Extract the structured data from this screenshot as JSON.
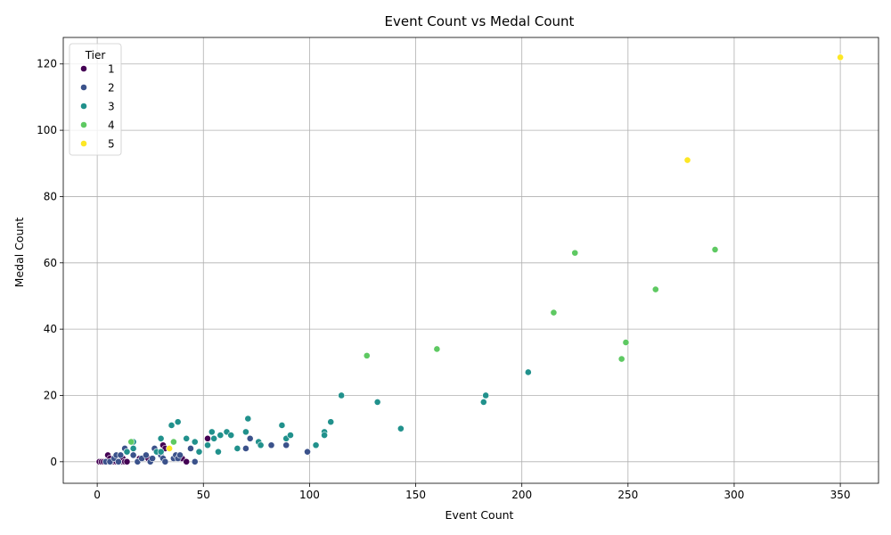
{
  "chart_data": {
    "type": "scatter",
    "title": "Event Count vs Medal Count",
    "xlabel": "Event Count",
    "ylabel": "Medal Count",
    "xlim": [
      -16,
      368
    ],
    "ylim": [
      -6.5,
      128
    ],
    "xticks": [
      0,
      50,
      100,
      150,
      200,
      250,
      300,
      350
    ],
    "yticks": [
      0,
      20,
      40,
      60,
      80,
      100,
      120
    ],
    "grid": true,
    "legend": {
      "title": "Tier",
      "placement": "top-left"
    },
    "colors": {
      "1": "#440154",
      "2": "#3b528b",
      "3": "#21918c",
      "4": "#5ec962",
      "5": "#fde725"
    },
    "series": [
      {
        "name": "1",
        "points": [
          [
            1,
            0
          ],
          [
            2,
            0
          ],
          [
            3,
            0
          ],
          [
            4,
            0
          ],
          [
            5,
            0
          ],
          [
            5,
            2
          ],
          [
            6,
            0
          ],
          [
            6,
            1
          ],
          [
            7,
            0
          ],
          [
            8,
            0
          ],
          [
            8,
            1
          ],
          [
            9,
            0
          ],
          [
            10,
            0
          ],
          [
            11,
            0
          ],
          [
            12,
            0
          ],
          [
            12,
            1
          ],
          [
            13,
            0
          ],
          [
            14,
            0
          ],
          [
            20,
            1
          ],
          [
            24,
            1
          ],
          [
            31,
            5
          ],
          [
            32,
            4
          ],
          [
            38,
            1
          ],
          [
            40,
            1
          ],
          [
            42,
            0
          ],
          [
            52,
            7
          ],
          [
            72,
            7
          ]
        ]
      },
      {
        "name": "2",
        "points": [
          [
            4,
            0
          ],
          [
            6,
            0
          ],
          [
            8,
            1
          ],
          [
            9,
            2
          ],
          [
            10,
            0
          ],
          [
            11,
            2
          ],
          [
            13,
            4
          ],
          [
            14,
            3
          ],
          [
            17,
            2
          ],
          [
            19,
            0
          ],
          [
            21,
            1
          ],
          [
            23,
            2
          ],
          [
            25,
            0
          ],
          [
            26,
            1
          ],
          [
            27,
            4
          ],
          [
            30,
            2
          ],
          [
            31,
            1
          ],
          [
            32,
            0
          ],
          [
            36,
            1
          ],
          [
            37,
            2
          ],
          [
            38,
            1
          ],
          [
            39,
            2
          ],
          [
            44,
            4
          ],
          [
            46,
            0
          ],
          [
            70,
            4
          ],
          [
            72,
            7
          ],
          [
            82,
            5
          ],
          [
            89,
            5
          ],
          [
            99,
            3
          ]
        ]
      },
      {
        "name": "3",
        "points": [
          [
            14,
            3
          ],
          [
            16,
            6
          ],
          [
            17,
            4
          ],
          [
            17,
            6
          ],
          [
            28,
            3
          ],
          [
            30,
            7
          ],
          [
            30,
            3
          ],
          [
            35,
            11
          ],
          [
            38,
            12
          ],
          [
            42,
            7
          ],
          [
            46,
            6
          ],
          [
            48,
            3
          ],
          [
            52,
            5
          ],
          [
            54,
            9
          ],
          [
            55,
            7
          ],
          [
            57,
            3
          ],
          [
            58,
            8
          ],
          [
            61,
            9
          ],
          [
            63,
            8
          ],
          [
            66,
            4
          ],
          [
            70,
            9
          ],
          [
            71,
            13
          ],
          [
            76,
            6
          ],
          [
            77,
            5
          ],
          [
            87,
            11
          ],
          [
            89,
            7
          ],
          [
            91,
            8
          ],
          [
            103,
            5
          ],
          [
            107,
            9
          ],
          [
            107,
            8
          ],
          [
            110,
            12
          ],
          [
            115,
            20
          ],
          [
            132,
            18
          ],
          [
            143,
            10
          ],
          [
            182,
            18
          ],
          [
            183,
            20
          ],
          [
            203,
            27
          ]
        ]
      },
      {
        "name": "4",
        "points": [
          [
            16,
            6
          ],
          [
            36,
            6
          ],
          [
            127,
            32
          ],
          [
            160,
            34
          ],
          [
            215,
            45
          ],
          [
            225,
            63
          ],
          [
            247,
            31
          ],
          [
            249,
            36
          ],
          [
            263,
            52
          ],
          [
            291,
            64
          ]
        ]
      },
      {
        "name": "5",
        "points": [
          [
            34,
            4
          ],
          [
            278,
            91
          ],
          [
            350,
            122
          ]
        ]
      }
    ]
  }
}
